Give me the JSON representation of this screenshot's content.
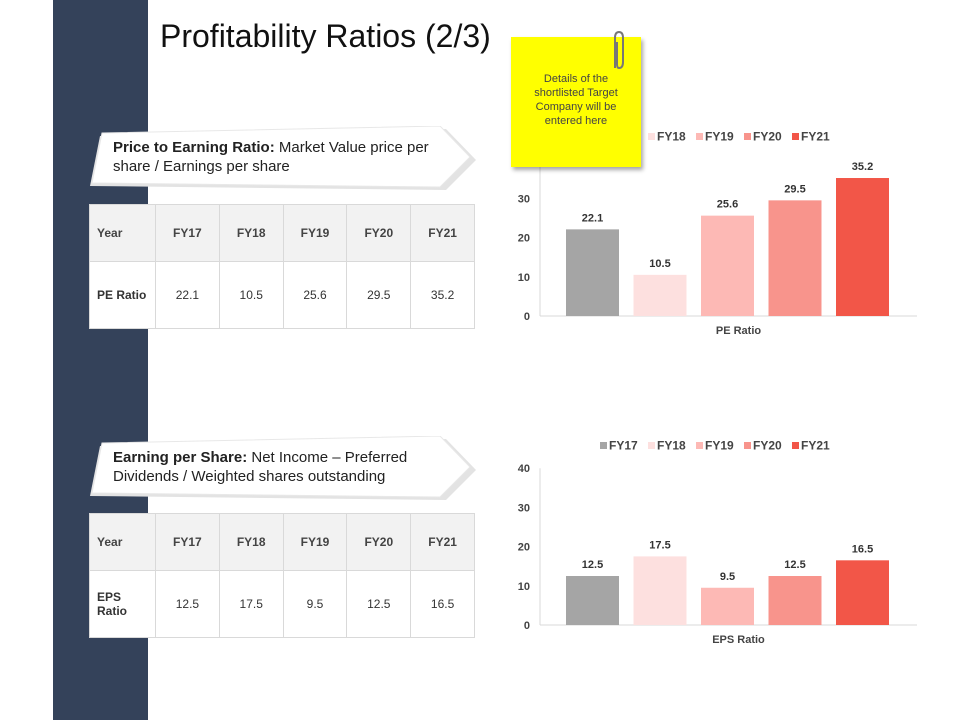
{
  "page": {
    "title": "Profitability Ratios (2/3)"
  },
  "sections": [
    {
      "callout": {
        "bold": "Price to Earning Ratio:",
        "text": " Market Value price per share / Earnings per share"
      },
      "table": {
        "header": [
          "Year",
          "FY17",
          "FY18",
          "FY19",
          "FY20",
          "FY21"
        ],
        "row_label": "PE Ratio",
        "values": [
          "22.1",
          "10.5",
          "25.6",
          "29.5",
          "35.2"
        ]
      }
    },
    {
      "callout": {
        "bold": "Earning per Share:",
        "text": " Net Income – Preferred Dividends / Weighted shares outstanding"
      },
      "table": {
        "header": [
          "Year",
          "FY17",
          "FY18",
          "FY19",
          "FY20",
          "FY21"
        ],
        "row_label": "EPS Ratio",
        "values": [
          "12.5",
          "17.5",
          "9.5",
          "12.5",
          "16.5"
        ]
      }
    }
  ],
  "sticky_note": {
    "text": "Details of the shortlisted Target Company will be entered here"
  },
  "chart_data": [
    {
      "type": "bar",
      "categories": [
        "PE Ratio"
      ],
      "series": [
        {
          "name": "FY17",
          "values": [
            22.1
          ],
          "color": "#a5a5a5"
        },
        {
          "name": "FY18",
          "values": [
            10.5
          ],
          "color": "#fde0df"
        },
        {
          "name": "FY19",
          "values": [
            25.6
          ],
          "color": "#fdb9b5"
        },
        {
          "name": "FY20",
          "values": [
            29.5
          ],
          "color": "#f8948c"
        },
        {
          "name": "FY21",
          "values": [
            35.2
          ],
          "color": "#f25648"
        }
      ],
      "yticks": [
        0,
        10,
        20,
        30
      ],
      "ylim": [
        0,
        40
      ],
      "xlabel": "PE Ratio",
      "legend": "top",
      "grid": false
    },
    {
      "type": "bar",
      "categories": [
        "EPS Ratio"
      ],
      "series": [
        {
          "name": "FY17",
          "values": [
            12.5
          ],
          "color": "#a5a5a5"
        },
        {
          "name": "FY18",
          "values": [
            17.5
          ],
          "color": "#fde0df"
        },
        {
          "name": "FY19",
          "values": [
            9.5
          ],
          "color": "#fdb9b5"
        },
        {
          "name": "FY20",
          "values": [
            12.5
          ],
          "color": "#f8948c"
        },
        {
          "name": "FY21",
          "values": [
            16.5
          ],
          "color": "#f25648"
        }
      ],
      "yticks": [
        0,
        10,
        20,
        30,
        40
      ],
      "ylim": [
        0,
        40
      ],
      "xlabel": "EPS Ratio",
      "legend": "top",
      "grid": false
    }
  ]
}
